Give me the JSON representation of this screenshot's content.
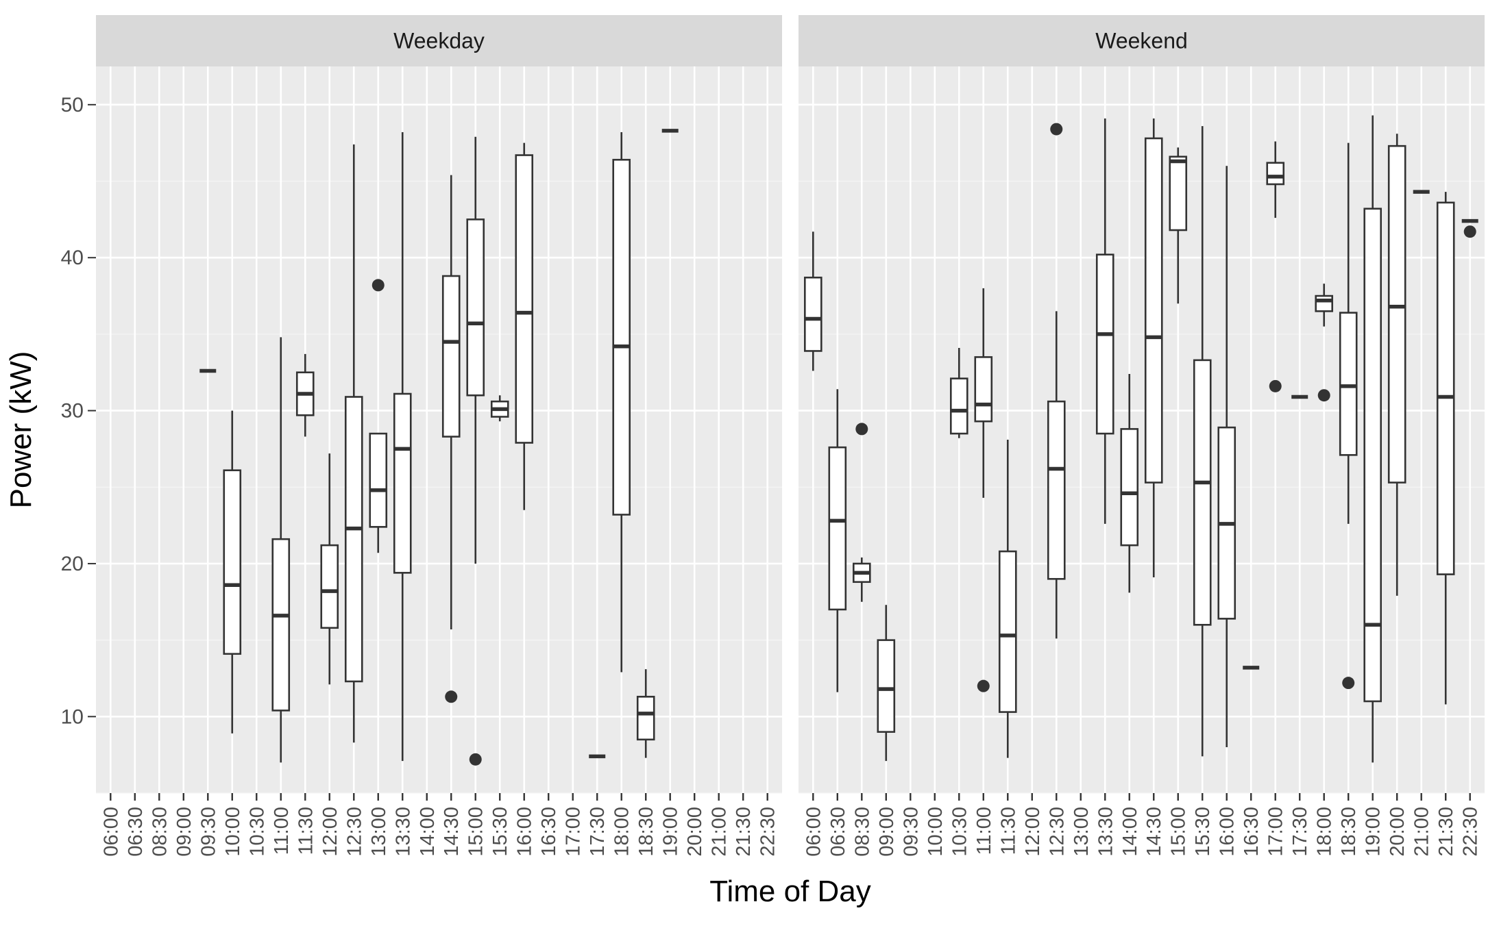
{
  "chart_data": {
    "type": "boxplot",
    "xlabel": "Time of Day",
    "ylabel": "Power (kW)",
    "ylim": [
      5,
      52.5
    ],
    "yticks": [
      10,
      20,
      30,
      40,
      50
    ],
    "grid": true,
    "panels": [
      {
        "title": "Weekday",
        "categories": [
          "06:00",
          "06:30",
          "08:30",
          "09:00",
          "09:30",
          "10:00",
          "10:30",
          "11:00",
          "11:30",
          "12:00",
          "12:30",
          "13:00",
          "13:30",
          "14:00",
          "14:30",
          "15:00",
          "15:30",
          "16:00",
          "16:30",
          "17:00",
          "17:30",
          "18:00",
          "18:30",
          "19:00",
          "20:00",
          "21:00",
          "21:30",
          "22:30"
        ],
        "boxes": [
          {
            "x": "09:30",
            "min": 32.6,
            "q1": 32.6,
            "median": 32.6,
            "q3": 32.6,
            "max": 32.6,
            "outliers": []
          },
          {
            "x": "10:00",
            "min": 8.9,
            "q1": 14.1,
            "median": 18.6,
            "q3": 26.1,
            "max": 30.0,
            "outliers": []
          },
          {
            "x": "11:00",
            "min": 7.0,
            "q1": 10.4,
            "median": 16.6,
            "q3": 21.6,
            "max": 34.8,
            "outliers": []
          },
          {
            "x": "11:30",
            "min": 28.3,
            "q1": 29.7,
            "median": 31.1,
            "q3": 32.5,
            "max": 33.7,
            "outliers": []
          },
          {
            "x": "12:00",
            "min": 12.1,
            "q1": 15.8,
            "median": 18.2,
            "q3": 21.2,
            "max": 27.2,
            "outliers": []
          },
          {
            "x": "12:30",
            "min": 8.3,
            "q1": 12.3,
            "median": 22.3,
            "q3": 30.9,
            "max": 47.4,
            "outliers": []
          },
          {
            "x": "13:00",
            "min": 20.7,
            "q1": 22.4,
            "median": 24.8,
            "q3": 28.5,
            "max": 28.5,
            "outliers": [
              38.2
            ]
          },
          {
            "x": "13:30",
            "min": 7.1,
            "q1": 19.4,
            "median": 27.5,
            "q3": 31.1,
            "max": 48.2,
            "outliers": []
          },
          {
            "x": "14:30",
            "min": 15.7,
            "q1": 28.3,
            "median": 34.5,
            "q3": 38.8,
            "max": 45.4,
            "outliers": [
              11.3
            ]
          },
          {
            "x": "15:00",
            "min": 20.0,
            "q1": 31.0,
            "median": 35.7,
            "q3": 42.5,
            "max": 47.9,
            "outliers": [
              7.2
            ]
          },
          {
            "x": "15:30",
            "min": 29.3,
            "q1": 29.6,
            "median": 30.1,
            "q3": 30.6,
            "max": 31.0,
            "outliers": []
          },
          {
            "x": "16:00",
            "min": 23.5,
            "q1": 27.9,
            "median": 36.4,
            "q3": 46.7,
            "max": 47.5,
            "outliers": []
          },
          {
            "x": "17:30",
            "min": 7.4,
            "q1": 7.4,
            "median": 7.4,
            "q3": 7.4,
            "max": 7.4,
            "outliers": []
          },
          {
            "x": "18:00",
            "min": 12.9,
            "q1": 23.2,
            "median": 34.2,
            "q3": 46.4,
            "max": 48.2,
            "outliers": []
          },
          {
            "x": "18:30",
            "min": 7.3,
            "q1": 8.5,
            "median": 10.2,
            "q3": 11.3,
            "max": 13.1,
            "outliers": []
          },
          {
            "x": "19:00",
            "min": 48.3,
            "q1": 48.3,
            "median": 48.3,
            "q3": 48.3,
            "max": 48.3,
            "outliers": []
          }
        ]
      },
      {
        "title": "Weekend",
        "categories": [
          "06:00",
          "06:30",
          "08:30",
          "09:00",
          "09:30",
          "10:00",
          "10:30",
          "11:00",
          "11:30",
          "12:00",
          "12:30",
          "13:00",
          "13:30",
          "14:00",
          "14:30",
          "15:00",
          "15:30",
          "16:00",
          "16:30",
          "17:00",
          "17:30",
          "18:00",
          "18:30",
          "19:00",
          "20:00",
          "21:00",
          "21:30",
          "22:30"
        ],
        "boxes": [
          {
            "x": "06:00",
            "min": 32.6,
            "q1": 33.9,
            "median": 36.0,
            "q3": 38.7,
            "max": 41.7,
            "outliers": []
          },
          {
            "x": "06:30",
            "min": 11.6,
            "q1": 17.0,
            "median": 22.8,
            "q3": 27.6,
            "max": 31.4,
            "outliers": []
          },
          {
            "x": "08:30",
            "min": 17.5,
            "q1": 18.8,
            "median": 19.4,
            "q3": 20.0,
            "max": 20.4,
            "outliers": [
              28.8
            ]
          },
          {
            "x": "09:00",
            "min": 7.1,
            "q1": 9.0,
            "median": 11.8,
            "q3": 15.0,
            "max": 17.3,
            "outliers": []
          },
          {
            "x": "10:30",
            "min": 28.2,
            "q1": 28.5,
            "median": 30.0,
            "q3": 32.1,
            "max": 34.1,
            "outliers": []
          },
          {
            "x": "11:00",
            "min": 24.3,
            "q1": 29.3,
            "median": 30.4,
            "q3": 33.5,
            "max": 38.0,
            "outliers": [
              12.0
            ]
          },
          {
            "x": "11:30",
            "min": 7.3,
            "q1": 10.3,
            "median": 15.3,
            "q3": 20.8,
            "max": 28.1,
            "outliers": []
          },
          {
            "x": "12:30",
            "min": 15.1,
            "q1": 19.0,
            "median": 26.2,
            "q3": 30.6,
            "max": 36.5,
            "outliers": [
              48.4
            ]
          },
          {
            "x": "13:30",
            "min": 22.6,
            "q1": 28.5,
            "median": 35.0,
            "q3": 40.2,
            "max": 49.1,
            "outliers": []
          },
          {
            "x": "14:00",
            "min": 18.1,
            "q1": 21.2,
            "median": 24.6,
            "q3": 28.8,
            "max": 32.4,
            "outliers": []
          },
          {
            "x": "14:30",
            "min": 19.1,
            "q1": 25.3,
            "median": 34.8,
            "q3": 47.8,
            "max": 49.1,
            "outliers": []
          },
          {
            "x": "15:00",
            "min": 37.0,
            "q1": 41.8,
            "median": 46.3,
            "q3": 46.6,
            "max": 47.2,
            "outliers": []
          },
          {
            "x": "15:30",
            "min": 7.4,
            "q1": 16.0,
            "median": 25.3,
            "q3": 33.3,
            "max": 48.6,
            "outliers": []
          },
          {
            "x": "16:00",
            "min": 8.0,
            "q1": 16.4,
            "median": 22.6,
            "q3": 28.9,
            "max": 46.0,
            "outliers": []
          },
          {
            "x": "16:30",
            "min": 13.2,
            "q1": 13.2,
            "median": 13.2,
            "q3": 13.2,
            "max": 13.2,
            "outliers": []
          },
          {
            "x": "17:00",
            "min": 42.6,
            "q1": 44.8,
            "median": 45.3,
            "q3": 46.2,
            "max": 47.6,
            "outliers": [
              31.6
            ]
          },
          {
            "x": "17:30",
            "min": 30.9,
            "q1": 30.9,
            "median": 30.9,
            "q3": 30.9,
            "max": 30.9,
            "outliers": []
          },
          {
            "x": "18:00",
            "min": 35.5,
            "q1": 36.5,
            "median": 37.2,
            "q3": 37.5,
            "max": 38.3,
            "outliers": [
              31.0
            ]
          },
          {
            "x": "18:30",
            "min": 22.6,
            "q1": 27.1,
            "median": 31.6,
            "q3": 36.4,
            "max": 47.5,
            "outliers": [
              12.2
            ]
          },
          {
            "x": "19:00",
            "min": 7.0,
            "q1": 11.0,
            "median": 16.0,
            "q3": 43.2,
            "max": 49.3,
            "outliers": []
          },
          {
            "x": "20:00",
            "min": 17.9,
            "q1": 25.3,
            "median": 36.8,
            "q3": 47.3,
            "max": 48.1,
            "outliers": []
          },
          {
            "x": "21:00",
            "min": 44.3,
            "q1": 44.3,
            "median": 44.3,
            "q3": 44.3,
            "max": 44.3,
            "outliers": []
          },
          {
            "x": "21:30",
            "min": 10.8,
            "q1": 19.3,
            "median": 30.9,
            "q3": 43.6,
            "max": 44.3,
            "outliers": []
          },
          {
            "x": "22:30",
            "min": 42.4,
            "q1": 42.4,
            "median": 42.4,
            "q3": 42.4,
            "max": 42.4,
            "outliers": [
              41.7
            ]
          }
        ]
      }
    ]
  }
}
